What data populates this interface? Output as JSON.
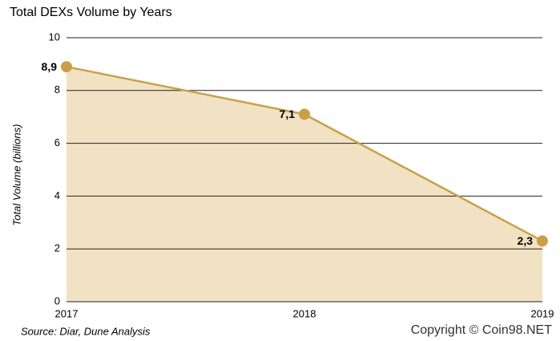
{
  "chart_data": {
    "type": "area-line",
    "title": "Total DEXs Volume by Years",
    "y_label": "Total Volume (billions)",
    "categories": [
      "2017",
      "2018",
      "2019"
    ],
    "values": [
      8.9,
      7.1,
      2.3
    ],
    "value_labels": [
      "8,9",
      "7,1",
      "2,3"
    ],
    "color": "#c9a04a",
    "fill_color": "#f2e2c4",
    "ylim": [
      0,
      10
    ],
    "yticks": [
      0,
      2,
      4,
      6,
      8,
      10
    ],
    "grid": true,
    "source": "Source: Diar, Dune Analysis",
    "copyright": "Copyright © Coin98.NET"
  }
}
